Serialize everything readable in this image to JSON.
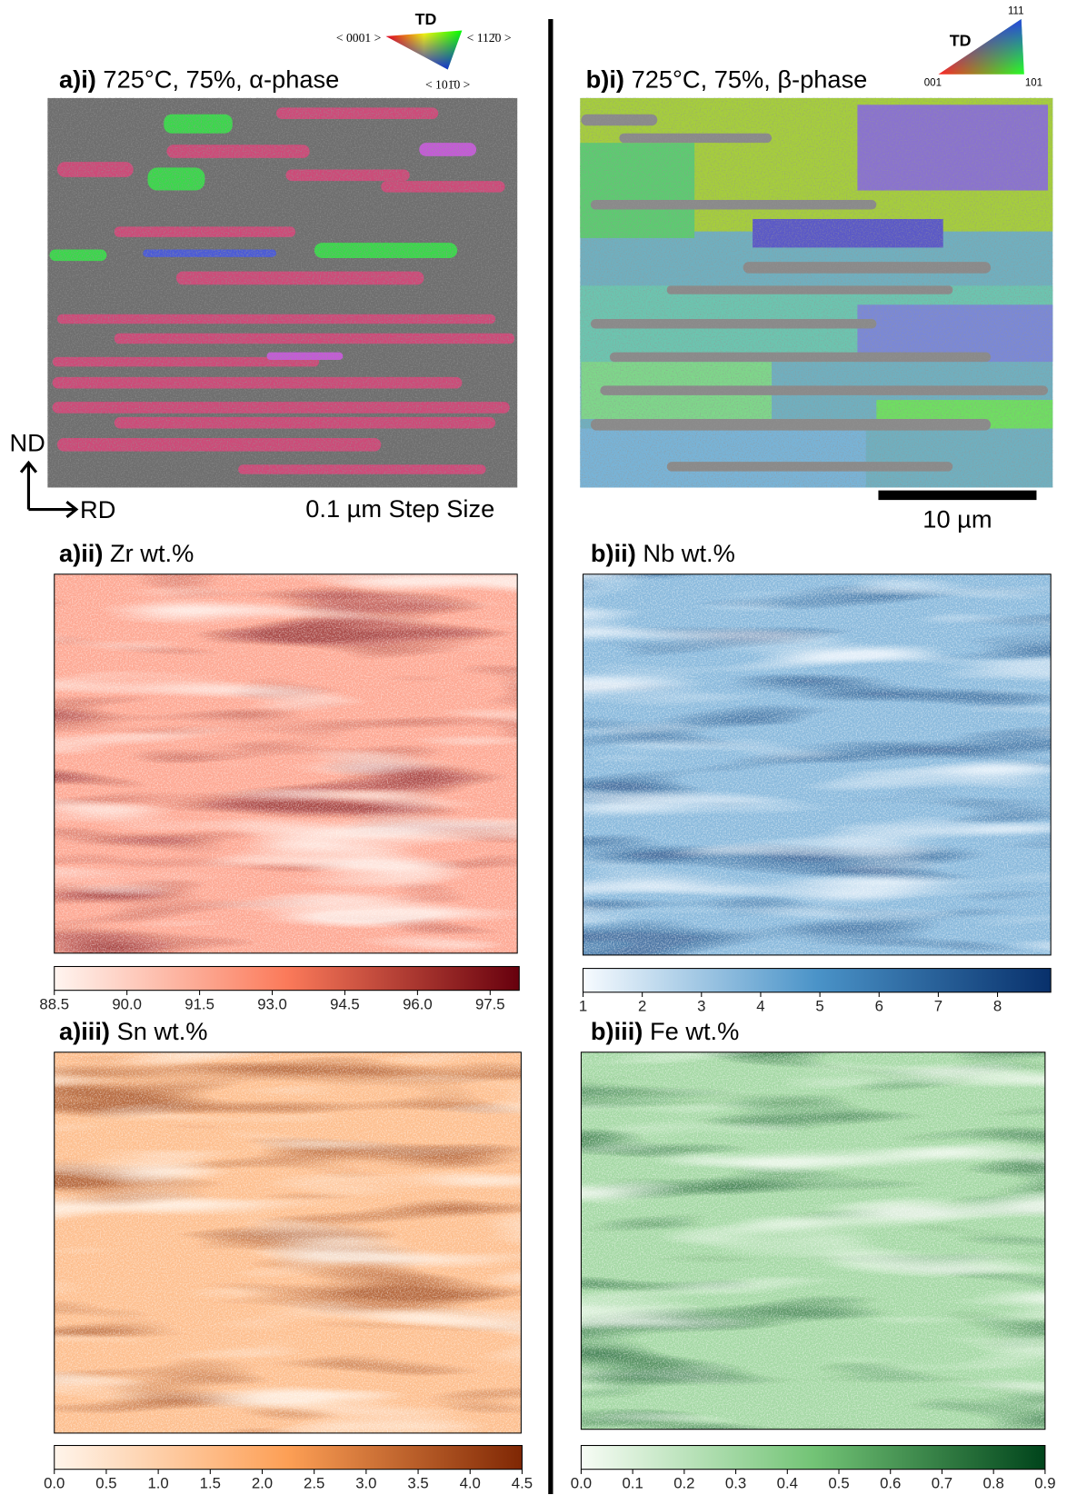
{
  "ebsd": [
    {
      "label": "a)i)",
      "title": "725°C, 75%, α-phase",
      "note": "0.1 µm Step Size",
      "legend": {
        "title": "TD",
        "corners": [
          "< 0001 >",
          "< 112̄0 >",
          "< 101̄0 >"
        ]
      }
    },
    {
      "label": "b)i)",
      "title": "725°C, 75%, β-phase",
      "scale_bar": "10 µm",
      "legend": {
        "title": "TD",
        "corners": [
          "001",
          "101",
          "111"
        ]
      }
    }
  ],
  "axes": {
    "vertical": "ND",
    "horizontal": "RD"
  },
  "maps": [
    {
      "label": "a)ii)",
      "title": "Zr wt.%",
      "colorbar": {
        "lim": [
          88.5,
          98.1
        ],
        "colors": [
          "#fff5f0",
          "#fb7a5a",
          "#67000d"
        ],
        "ticks": [
          88.5,
          {
            "value": 90,
            "label": "90.0"
          },
          91.5,
          {
            "value": 93,
            "label": "93.0"
          },
          94.5,
          {
            "value": 96,
            "label": "96.0"
          },
          97.5
        ]
      }
    },
    {
      "label": "b)ii)",
      "title": "Nb wt.%",
      "colorbar": {
        "lim": [
          1,
          8.9
        ],
        "colors": [
          "#f7fbff",
          "#4a93c8",
          "#08306b"
        ],
        "ticks": [
          1,
          2,
          3,
          4,
          5,
          6,
          7,
          8
        ]
      }
    },
    {
      "label": "a)iii)",
      "title": "Sn wt.%",
      "colorbar": {
        "lim": [
          0,
          4.5
        ],
        "colors": [
          "#fff5eb",
          "#fd9f55",
          "#7f2704"
        ],
        "ticks": [
          {
            "value": 0,
            "label": "0.0"
          },
          0.5,
          {
            "value": 1,
            "label": "1.0"
          },
          1.5,
          {
            "value": 2,
            "label": "2.0"
          },
          2.5,
          {
            "value": 3,
            "label": "3.0"
          },
          3.5,
          {
            "value": 4,
            "label": "4.0"
          },
          4.5
        ]
      }
    },
    {
      "label": "b)iii)",
      "title": "Fe wt.%",
      "colorbar": {
        "lim": [
          0,
          0.9
        ],
        "colors": [
          "#f7fcf5",
          "#73c476",
          "#00441b"
        ],
        "ticks": [
          {
            "value": 0,
            "label": "0.0"
          },
          0.1,
          0.2,
          0.3,
          0.4,
          0.5,
          0.6,
          0.7,
          0.8,
          0.9
        ]
      }
    }
  ]
}
